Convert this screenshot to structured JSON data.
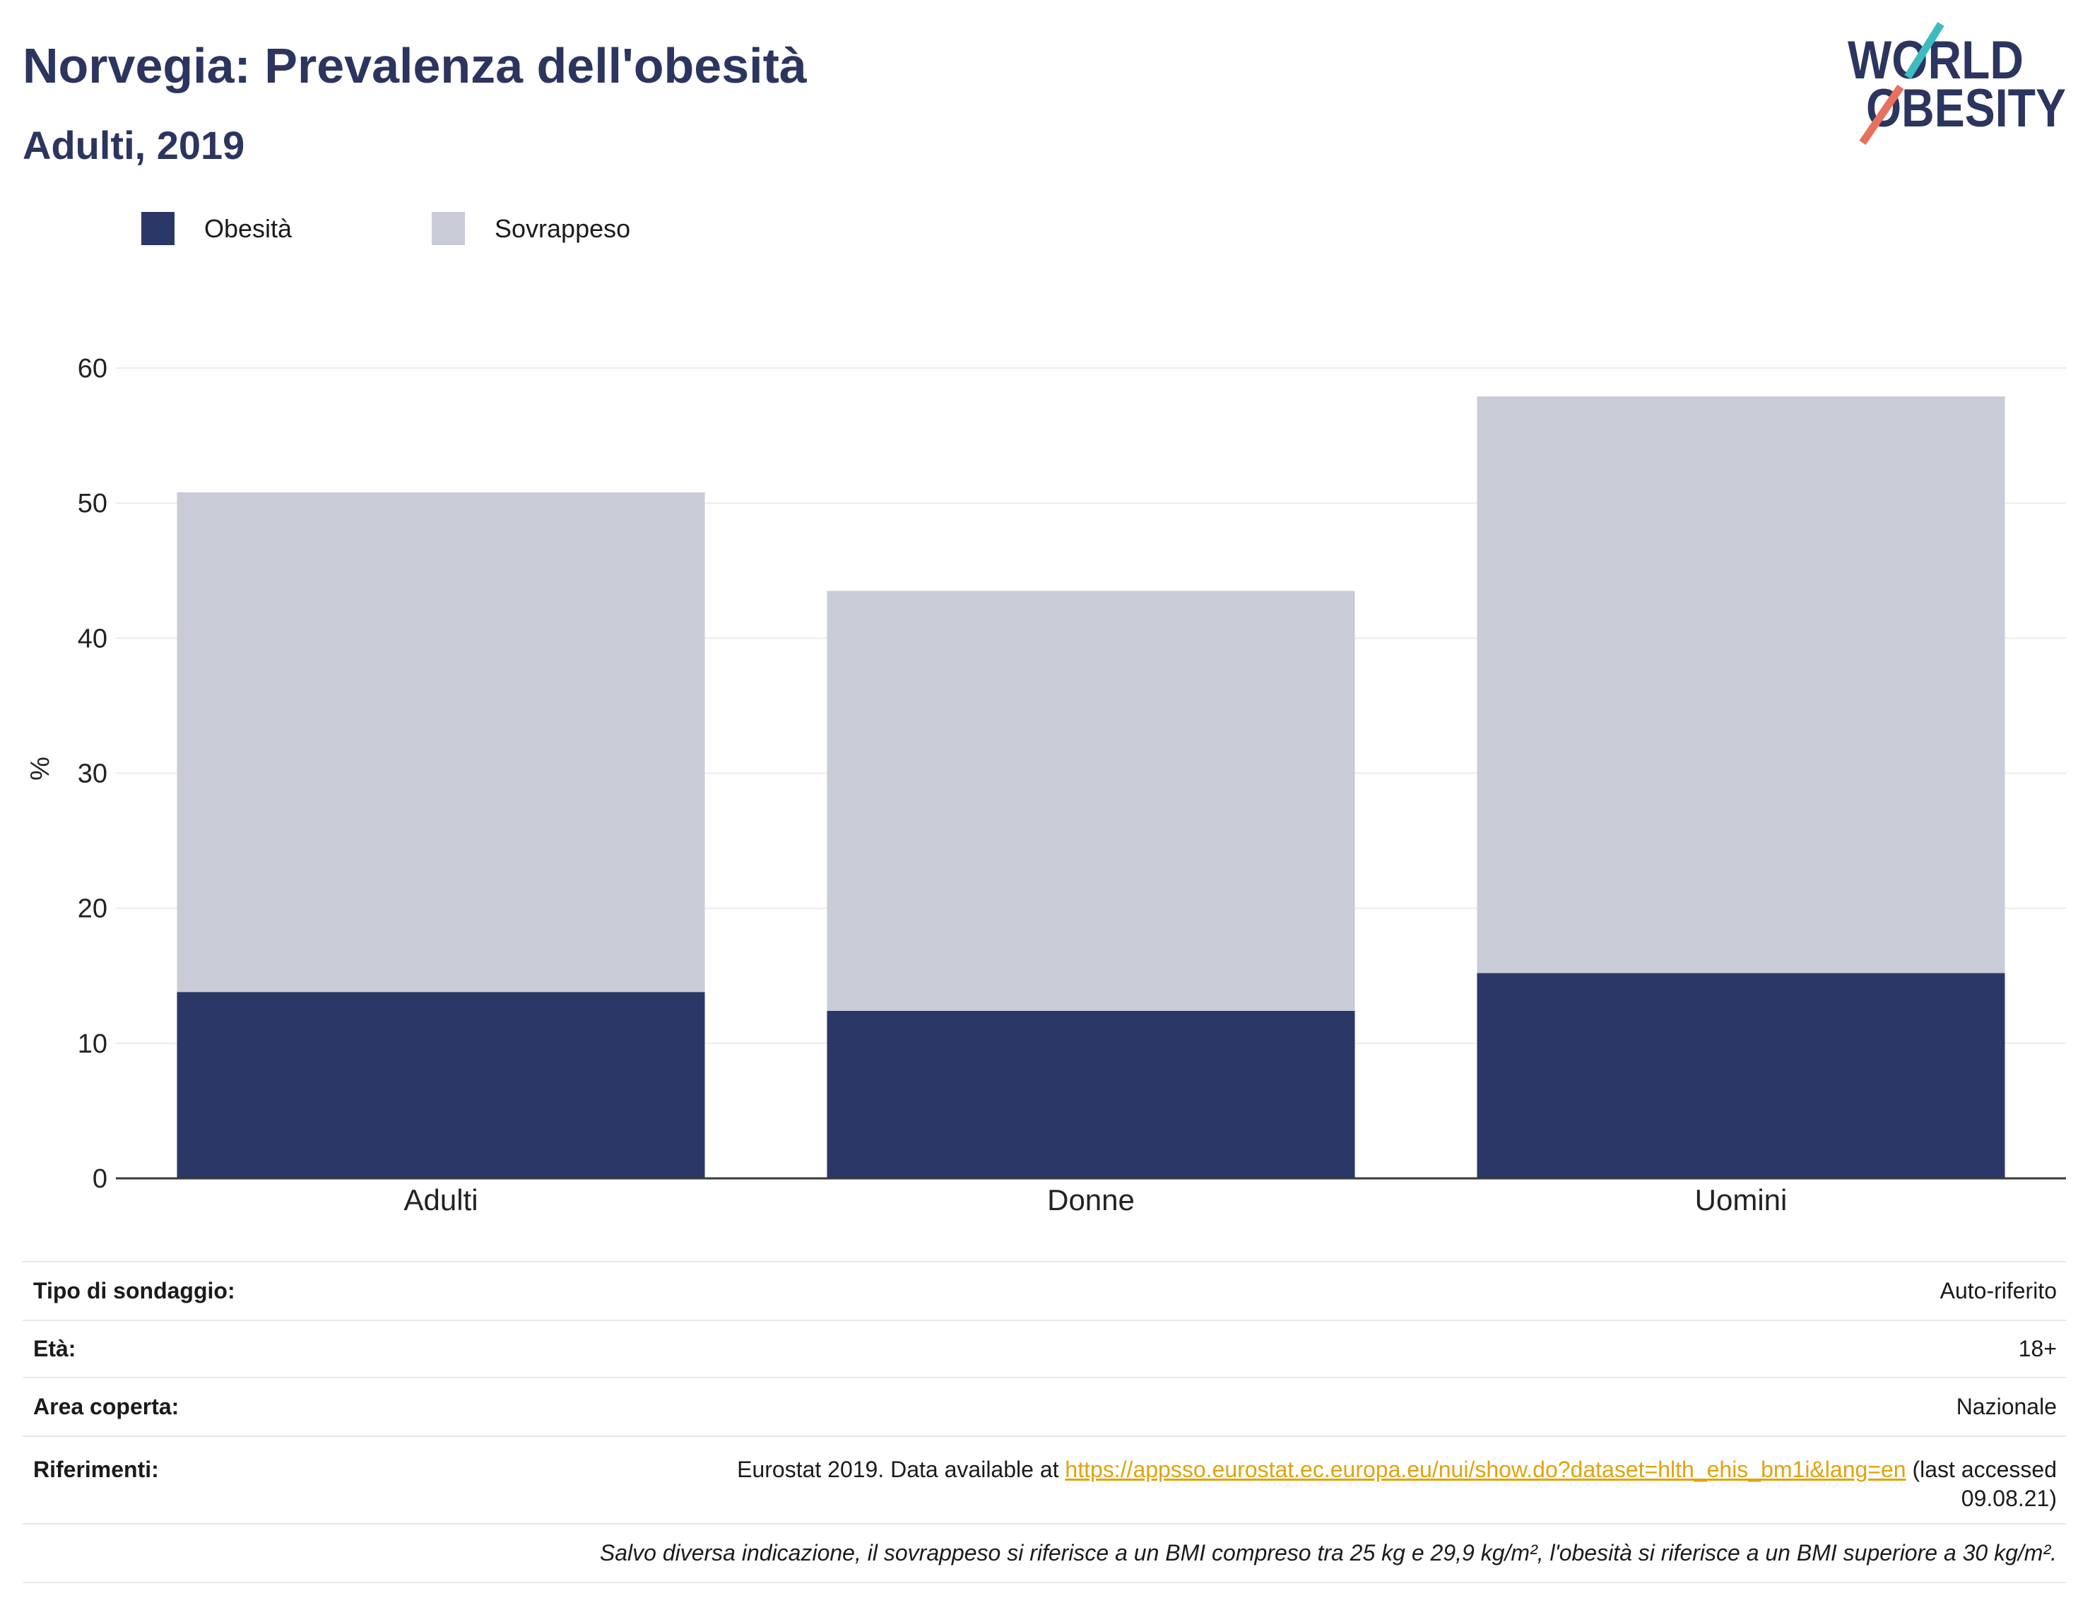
{
  "title": "Norvegia: Prevalenza dell'obesità",
  "subtitle": "Adulti, 2019",
  "logo": {
    "line1": "WORLD",
    "line2": "OBESITY"
  },
  "colors": {
    "title": "#2b355f",
    "link": "#e0a30b",
    "logo_teal": "#3cbcc0",
    "logo_coral": "#e8705c",
    "gridline": "#ebebf1",
    "axis": "#3a3a3a"
  },
  "chart_data": {
    "type": "bar",
    "stacked": true,
    "categories": [
      "Adulti",
      "Donne",
      "Uomini"
    ],
    "series": [
      {
        "name": "Obesità",
        "color": "#2b3766",
        "values": [
          13.8,
          12.4,
          15.2
        ]
      },
      {
        "name": "Sovrappeso",
        "color": "#c9cbd7",
        "values": [
          37.0,
          31.1,
          42.7
        ]
      }
    ],
    "ylabel": "%",
    "ylim": [
      0,
      60
    ],
    "yticks": [
      0,
      10,
      20,
      30,
      40,
      50,
      60
    ],
    "grid": true,
    "legend_position": "top-left"
  },
  "info_table": [
    {
      "label": "Tipo di sondaggio:",
      "value": "Auto-riferito"
    },
    {
      "label": "Età:",
      "value": "18+"
    },
    {
      "label": "Area coperta:",
      "value": "Nazionale"
    }
  ],
  "references": {
    "label": "Riferimenti:",
    "prefix": "Eurostat 2019. Data available at ",
    "link": "https://appsso.eurostat.ec.europa.eu/nui/show.do?dataset=hlth_ehis_bm1i&lang=en",
    "suffix_line1": " (last accessed",
    "suffix_line2": "09.08.21)"
  },
  "footnote": "Salvo diversa indicazione, il sovrappeso si riferisce a un BMI compreso tra 25 kg e 29,9 kg/m², l'obesità si riferisce a un BMI superiore a 30 kg/m²."
}
